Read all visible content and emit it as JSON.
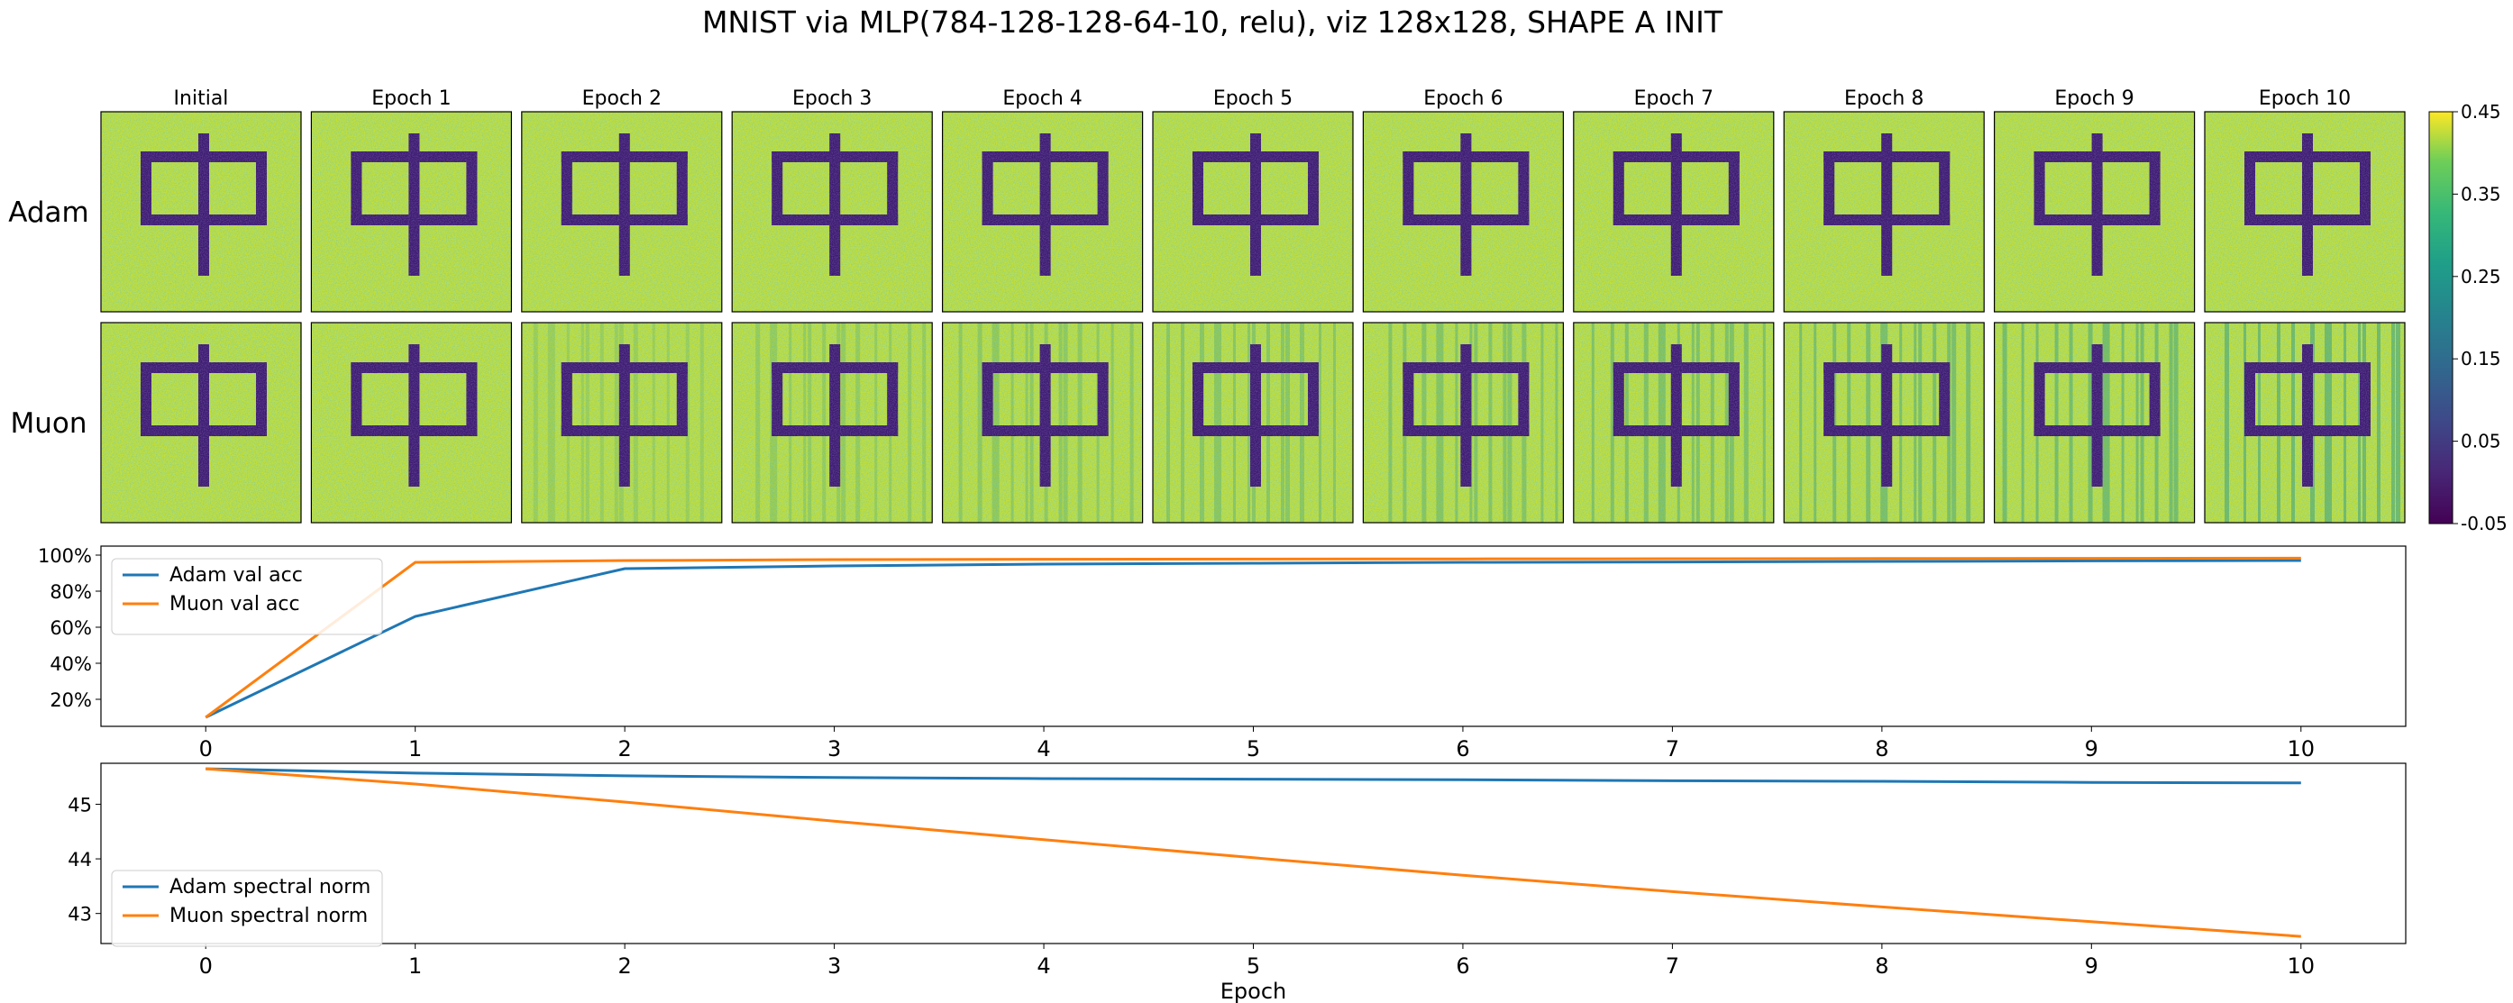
{
  "title": "MNIST via MLP(784-128-128-64-10, relu), viz 128x128, SHAPE A INIT",
  "grid": {
    "column_titles": [
      "Initial",
      "Epoch 1",
      "Epoch 2",
      "Epoch 3",
      "Epoch 4",
      "Epoch 5",
      "Epoch 6",
      "Epoch 7",
      "Epoch 8",
      "Epoch 9",
      "Epoch 10"
    ],
    "row_labels": [
      "Adam",
      "Muon"
    ],
    "colorbar": {
      "min": -0.05,
      "max": 0.45,
      "ticks": [
        "-0.05",
        "0.05",
        "0.15",
        "0.25",
        "0.35",
        "0.45"
      ],
      "colormap": "viridis"
    },
    "shape": "中"
  },
  "chart_data": [
    {
      "type": "line",
      "x": [
        0,
        1,
        2,
        3,
        4,
        5,
        6,
        7,
        8,
        9,
        10
      ],
      "series": [
        {
          "name": "Adam val acc",
          "color": "#1f77b4",
          "values": [
            0.1,
            0.66,
            0.925,
            0.94,
            0.95,
            0.955,
            0.96,
            0.962,
            0.965,
            0.968,
            0.97
          ]
        },
        {
          "name": "Muon val acc",
          "color": "#ff7f0e",
          "values": [
            0.1,
            0.96,
            0.97,
            0.975,
            0.977,
            0.978,
            0.979,
            0.98,
            0.981,
            0.982,
            0.983
          ]
        }
      ],
      "ylim": [
        0.05,
        1.05
      ],
      "yticks": [
        "20%",
        "40%",
        "60%",
        "80%",
        "100%"
      ],
      "xticks": [
        "0",
        "1",
        "2",
        "3",
        "4",
        "5",
        "6",
        "7",
        "8",
        "9",
        "10"
      ],
      "xlabel": "Epoch",
      "legend": "upper-left"
    },
    {
      "type": "line",
      "x": [
        0,
        1,
        2,
        3,
        4,
        5,
        6,
        7,
        8,
        9,
        10
      ],
      "series": [
        {
          "name": "Adam spectral norm",
          "color": "#1f77b4",
          "values": [
            45.65,
            45.57,
            45.52,
            45.49,
            45.47,
            45.46,
            45.45,
            45.43,
            45.42,
            45.4,
            45.39
          ]
        },
        {
          "name": "Muon spectral norm",
          "color": "#ff7f0e",
          "values": [
            45.65,
            45.37,
            45.04,
            44.69,
            44.35,
            44.02,
            43.7,
            43.4,
            43.12,
            42.85,
            42.58
          ]
        }
      ],
      "ylim": [
        42.45,
        45.75
      ],
      "yticks": [
        "43",
        "44",
        "45"
      ],
      "xticks": [
        "0",
        "1",
        "2",
        "3",
        "4",
        "5",
        "6",
        "7",
        "8",
        "9",
        "10"
      ],
      "xlabel": "Epoch",
      "legend": "center-left"
    }
  ]
}
